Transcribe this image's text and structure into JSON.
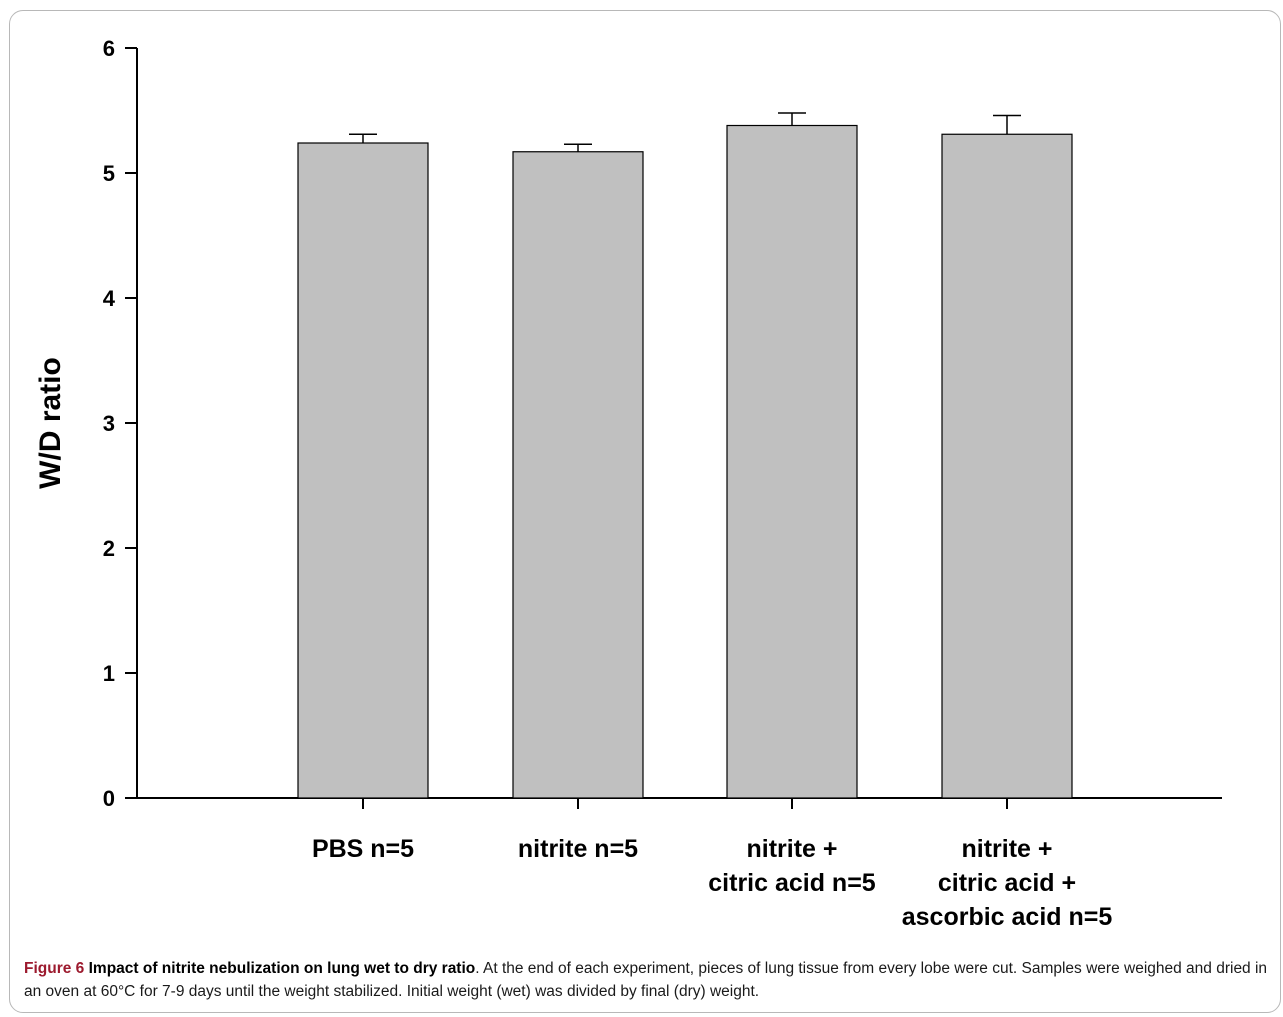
{
  "chart_data": {
    "type": "bar",
    "categories": [
      [
        "PBS n=5"
      ],
      [
        "nitrite n=5"
      ],
      [
        "nitrite +",
        "citric acid n=5"
      ],
      [
        "nitrite +",
        "citric acid +",
        "ascorbic acid n=5"
      ]
    ],
    "values": [
      5.24,
      5.17,
      5.38,
      5.31
    ],
    "errors": [
      0.07,
      0.06,
      0.1,
      0.15
    ],
    "ylabel": "W/D ratio",
    "ylim": [
      0,
      6
    ],
    "yticks": [
      0,
      1,
      2,
      3,
      4,
      5,
      6
    ],
    "bar_color": "#c0c0c0",
    "grid": false
  },
  "caption": {
    "label": "Figure 6",
    "title": "Impact of nitrite nebulization on lung wet to dry ratio",
    "text": ". At the end of each experiment, pieces of lung tissue from every lobe were cut. Samples were weighed and dried in an oven at 60°C for 7-9 days until the weight stabilized. Initial weight (wet) was divided by final (dry) weight."
  }
}
